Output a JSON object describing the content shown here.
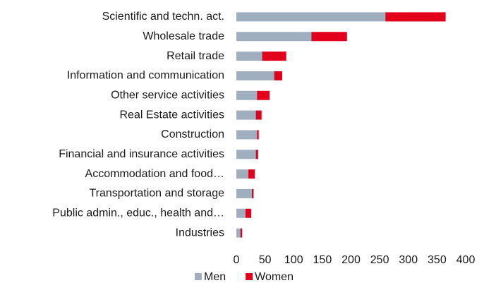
{
  "chart_data": {
    "type": "stacked_barh",
    "categories": [
      "Scientific and techn. act.",
      "Wholesale trade",
      "Retail trade",
      "Information and communication",
      "Other service activities",
      "Real Estate activities",
      "Construction",
      "Financial and insurance activities",
      "Accommodation and food…",
      "Transportation and storage",
      "Public admin., educ., health and…",
      "Industries"
    ],
    "series": [
      {
        "name": "Men",
        "color": "#a0afc0",
        "values": [
          260,
          131,
          45,
          66,
          36,
          34,
          36,
          34,
          21,
          27,
          16,
          7
        ]
      },
      {
        "name": "Women",
        "color": "#e2001a",
        "values": [
          105,
          62,
          42,
          14,
          22,
          10,
          3,
          4,
          11,
          3,
          10,
          3
        ]
      }
    ],
    "xlim": [
      0,
      400
    ],
    "xticks": [
      0,
      50,
      100,
      150,
      200,
      250,
      300,
      350,
      400
    ],
    "grid": false,
    "legend": "bottom"
  }
}
